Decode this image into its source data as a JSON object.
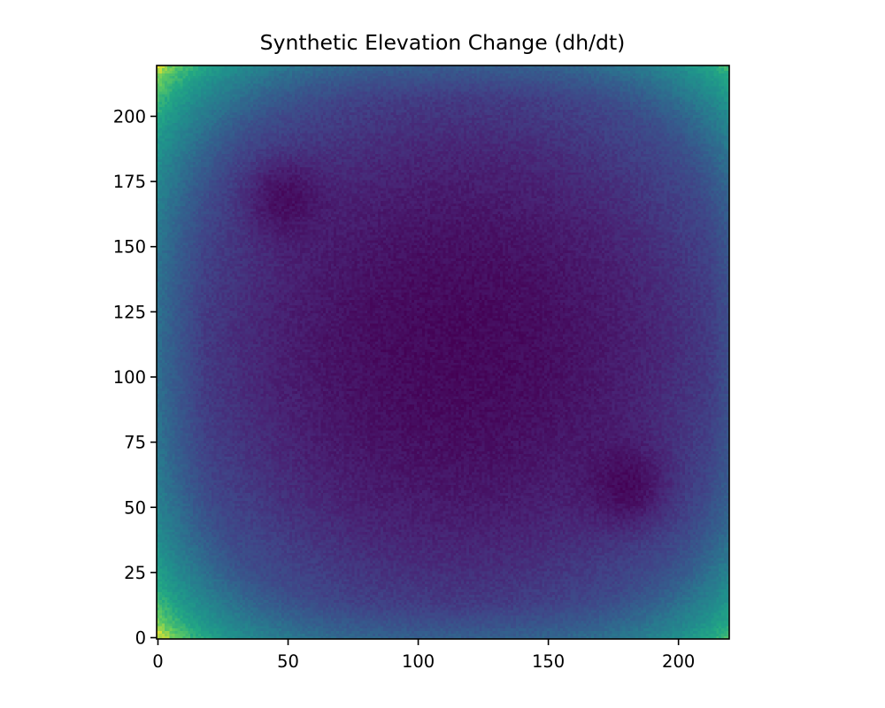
{
  "chart_data": {
    "type": "heatmap",
    "title": "Synthetic Elevation Change (dh/dt)",
    "xlabel": "",
    "ylabel": "",
    "xlim": [
      -0.5,
      219.5
    ],
    "ylim": [
      -0.5,
      219.5
    ],
    "origin": "lower",
    "colormap": "viridis",
    "grid": false,
    "legend": "none",
    "grid_size": [
      220,
      220
    ],
    "x_ticks": [
      {
        "value": 0,
        "label": "0"
      },
      {
        "value": 50,
        "label": "50"
      },
      {
        "value": 100,
        "label": "100"
      },
      {
        "value": 150,
        "label": "150"
      },
      {
        "value": 200,
        "label": "200"
      }
    ],
    "y_ticks": [
      {
        "value": 0,
        "label": "0"
      },
      {
        "value": 25,
        "label": "25"
      },
      {
        "value": 50,
        "label": "50"
      },
      {
        "value": 75,
        "label": "75"
      },
      {
        "value": 100,
        "label": "100"
      },
      {
        "value": 125,
        "label": "125"
      },
      {
        "value": 150,
        "label": "150"
      },
      {
        "value": 175,
        "label": "175"
      },
      {
        "value": 200,
        "label": "200"
      }
    ],
    "features": [
      {
        "kind": "broad-low",
        "center": [
          115,
          110
        ]
      },
      {
        "kind": "local-low",
        "center": [
          47,
          170
        ]
      },
      {
        "kind": "local-low",
        "center": [
          182,
          57
        ]
      },
      {
        "kind": "high",
        "center": [
          0,
          0
        ]
      },
      {
        "kind": "high",
        "center": [
          219,
          0
        ]
      },
      {
        "kind": "high",
        "center": [
          0,
          219
        ]
      },
      {
        "kind": "high",
        "center": [
          219,
          219
        ]
      }
    ]
  }
}
